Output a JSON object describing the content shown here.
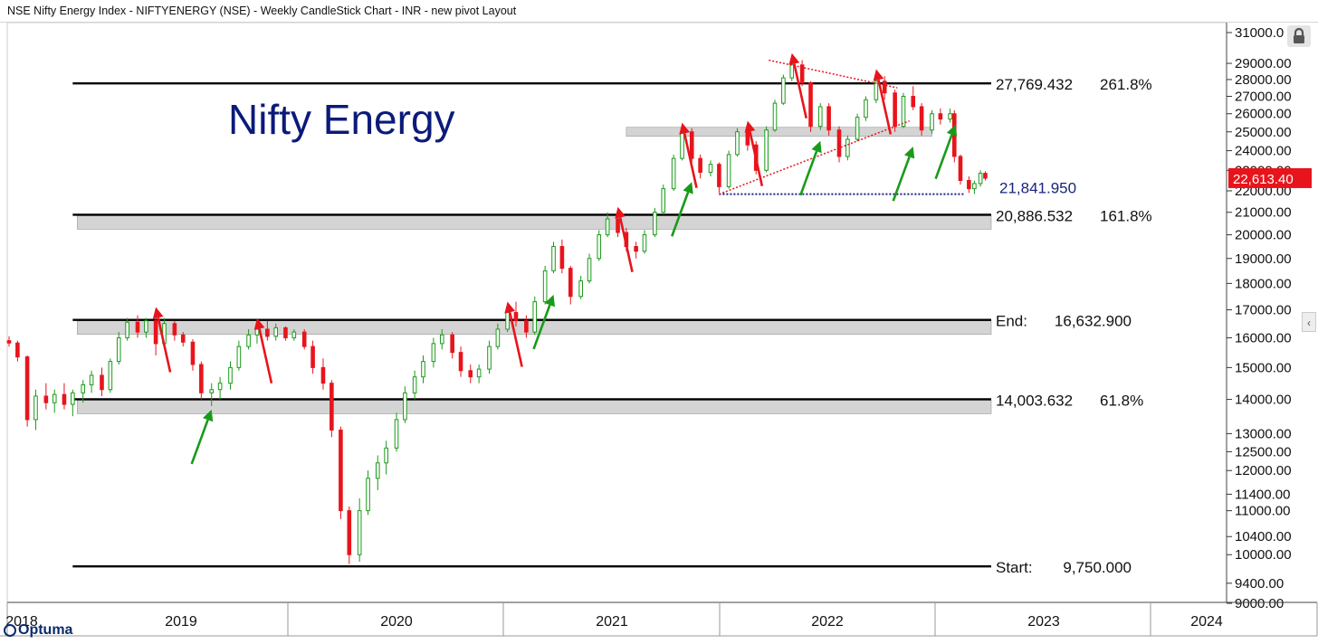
{
  "header": {
    "title": "NSE Nifty Energy Index - NIFTYENERGY (NSE) - Weekly CandleStick Chart - INR - new pivot Layout"
  },
  "brand": {
    "name": "Optuma"
  },
  "icons": {
    "lock": "lock-icon",
    "collapse": "chevron-left-icon"
  },
  "colors": {
    "up": "#1a9a1a",
    "down": "#e8141c",
    "level": "#000000",
    "band": "#d4d4d4",
    "title": "#0b1a7a",
    "lastprice_bg": "#e8141c",
    "pivot": "#1a237e"
  },
  "chart_data": {
    "type": "candlestick",
    "title": "Nifty Energy",
    "xlabel": "",
    "ylabel": "",
    "y_scale": "log",
    "ylim": [
      9000,
      31000
    ],
    "y_ticks": [
      {
        "value": 31000,
        "label": "31000.0"
      },
      {
        "value": 29000,
        "label": "29000.00"
      },
      {
        "value": 28000,
        "label": "28000.00"
      },
      {
        "value": 27000,
        "label": "27000.00"
      },
      {
        "value": 26000,
        "label": "26000.00"
      },
      {
        "value": 25000,
        "label": "25000.00"
      },
      {
        "value": 24000,
        "label": "24000.00"
      },
      {
        "value": 23000,
        "label": "23000.00"
      },
      {
        "value": 22000,
        "label": "22000.00"
      },
      {
        "value": 21000,
        "label": "21000.00"
      },
      {
        "value": 20000,
        "label": "20000.00"
      },
      {
        "value": 19000,
        "label": "19000.00"
      },
      {
        "value": 18000,
        "label": "18000.00"
      },
      {
        "value": 17000,
        "label": "17000.00"
      },
      {
        "value": 16000,
        "label": "16000.00"
      },
      {
        "value": 15000,
        "label": "15000.00"
      },
      {
        "value": 14000,
        "label": "14000.00"
      },
      {
        "value": 13000,
        "label": "13000.00"
      },
      {
        "value": 12500,
        "label": "12500.00"
      },
      {
        "value": 12000,
        "label": "12000.00"
      },
      {
        "value": 11400,
        "label": "11400.00"
      },
      {
        "value": 11000,
        "label": "11000.00"
      },
      {
        "value": 10400,
        "label": "10400.00"
      },
      {
        "value": 10000,
        "label": "10000.00"
      },
      {
        "value": 9400,
        "label": "9400.00"
      },
      {
        "value": 9000,
        "label": "9000.00"
      }
    ],
    "x_axis": {
      "domain": [
        "2018-09-01",
        "2024-02-15"
      ],
      "labels": [
        {
          "date": "2018-07-01",
          "label": "2018"
        },
        {
          "date": "2019-07-01",
          "label": "2019"
        },
        {
          "date": "2020-07-01",
          "label": "2020"
        },
        {
          "date": "2021-07-01",
          "label": "2021"
        },
        {
          "date": "2022-07-01",
          "label": "2022"
        },
        {
          "date": "2023-07-01",
          "label": "2023"
        },
        {
          "date": "2024-02-01",
          "label": "2024"
        }
      ]
    },
    "levels": [
      {
        "value": 27769.432,
        "label": "27,769.432",
        "pct": "261.8%",
        "band": false,
        "x_start": "2018-12-15"
      },
      {
        "value": 20886.532,
        "label": "20,886.532",
        "pct": "161.8%",
        "band": true,
        "x_start": "2018-12-15"
      },
      {
        "value": 16632.9,
        "label": "End:",
        "value_label": "16,632.900",
        "pct": "",
        "band": true,
        "x_start": "2018-12-15"
      },
      {
        "value": 14003.632,
        "label": "14,003.632",
        "pct": "61.8%",
        "band": true,
        "x_start": "2018-12-15"
      },
      {
        "value": 9750.0,
        "label": "Start:",
        "value_label": "9,750.000",
        "pct": "",
        "band": false,
        "x_start": "2018-12-15"
      }
    ],
    "resistance_band": {
      "value": 25000,
      "start": "2021-06-15",
      "end": "2022-11-01"
    },
    "pivot_line": {
      "value": 21841.95,
      "label": "21,841.950",
      "start": "2021-11-15",
      "end": "2022-12-25"
    },
    "triangle_lines": [
      {
        "from": {
          "date": "2021-11-15",
          "y": 21841.95
        },
        "to": {
          "date": "2022-09-25",
          "y": 25600
        }
      },
      {
        "from": {
          "date": "2022-02-05",
          "y": 29200
        },
        "to": {
          "date": "2022-09-05",
          "y": 27500
        }
      }
    ],
    "last_price": {
      "value": 22613.4,
      "label": "22,613.40"
    },
    "candles": [
      {
        "d": "2018-09-01",
        "o": 15900,
        "h": 16050,
        "l": 15700,
        "c": 15820
      },
      {
        "d": "2018-09-15",
        "o": 15820,
        "h": 15900,
        "l": 15200,
        "c": 15350
      },
      {
        "d": "2018-10-01",
        "o": 15350,
        "h": 15400,
        "l": 13200,
        "c": 13400
      },
      {
        "d": "2018-10-15",
        "o": 13400,
        "h": 14300,
        "l": 13100,
        "c": 14100
      },
      {
        "d": "2018-11-01",
        "o": 14100,
        "h": 14500,
        "l": 13700,
        "c": 13900
      },
      {
        "d": "2018-11-15",
        "o": 13900,
        "h": 14300,
        "l": 13600,
        "c": 14150
      },
      {
        "d": "2018-12-01",
        "o": 14150,
        "h": 14500,
        "l": 13700,
        "c": 13850
      },
      {
        "d": "2018-12-15",
        "o": 13850,
        "h": 14300,
        "l": 13500,
        "c": 14200
      },
      {
        "d": "2019-01-01",
        "o": 14200,
        "h": 14600,
        "l": 13900,
        "c": 14450
      },
      {
        "d": "2019-01-15",
        "o": 14450,
        "h": 14900,
        "l": 14200,
        "c": 14750
      },
      {
        "d": "2019-02-01",
        "o": 14750,
        "h": 15000,
        "l": 14100,
        "c": 14300
      },
      {
        "d": "2019-02-15",
        "o": 14300,
        "h": 15300,
        "l": 14200,
        "c": 15200
      },
      {
        "d": "2019-03-01",
        "o": 15200,
        "h": 16200,
        "l": 15100,
        "c": 16000
      },
      {
        "d": "2019-03-15",
        "o": 16000,
        "h": 16700,
        "l": 15900,
        "c": 16550
      },
      {
        "d": "2019-04-01",
        "o": 16550,
        "h": 16800,
        "l": 16000,
        "c": 16200
      },
      {
        "d": "2019-04-15",
        "o": 16200,
        "h": 16700,
        "l": 16000,
        "c": 16600
      },
      {
        "d": "2019-05-01",
        "o": 16600,
        "h": 16900,
        "l": 15400,
        "c": 15800
      },
      {
        "d": "2019-05-15",
        "o": 15800,
        "h": 16700,
        "l": 15700,
        "c": 16500
      },
      {
        "d": "2019-06-01",
        "o": 16500,
        "h": 16600,
        "l": 15900,
        "c": 16100
      },
      {
        "d": "2019-06-15",
        "o": 16100,
        "h": 16200,
        "l": 15700,
        "c": 15850
      },
      {
        "d": "2019-07-01",
        "o": 15850,
        "h": 15950,
        "l": 14900,
        "c": 15100
      },
      {
        "d": "2019-07-15",
        "o": 15100,
        "h": 15200,
        "l": 14000,
        "c": 14200
      },
      {
        "d": "2019-08-01",
        "o": 14200,
        "h": 14500,
        "l": 13800,
        "c": 14300
      },
      {
        "d": "2019-08-15",
        "o": 14300,
        "h": 14700,
        "l": 14000,
        "c": 14500
      },
      {
        "d": "2019-09-01",
        "o": 14500,
        "h": 15200,
        "l": 14300,
        "c": 15000
      },
      {
        "d": "2019-09-15",
        "o": 15000,
        "h": 15900,
        "l": 14900,
        "c": 15700
      },
      {
        "d": "2019-10-01",
        "o": 15700,
        "h": 16300,
        "l": 15600,
        "c": 16100
      },
      {
        "d": "2019-10-15",
        "o": 16100,
        "h": 16500,
        "l": 15800,
        "c": 16300
      },
      {
        "d": "2019-11-01",
        "o": 16300,
        "h": 16600,
        "l": 15900,
        "c": 16050
      },
      {
        "d": "2019-11-15",
        "o": 16050,
        "h": 16500,
        "l": 15900,
        "c": 16350
      },
      {
        "d": "2019-12-01",
        "o": 16350,
        "h": 16400,
        "l": 15900,
        "c": 16000
      },
      {
        "d": "2019-12-15",
        "o": 16000,
        "h": 16300,
        "l": 15900,
        "c": 16200
      },
      {
        "d": "2020-01-01",
        "o": 16200,
        "h": 16300,
        "l": 15600,
        "c": 15700
      },
      {
        "d": "2020-01-15",
        "o": 15700,
        "h": 15900,
        "l": 14800,
        "c": 15000
      },
      {
        "d": "2020-02-01",
        "o": 15000,
        "h": 15300,
        "l": 14300,
        "c": 14500
      },
      {
        "d": "2020-02-15",
        "o": 14500,
        "h": 14600,
        "l": 12900,
        "c": 13100
      },
      {
        "d": "2020-03-01",
        "o": 13100,
        "h": 13200,
        "l": 10800,
        "c": 11000
      },
      {
        "d": "2020-03-15",
        "o": 11000,
        "h": 11100,
        "l": 9800,
        "c": 10000
      },
      {
        "d": "2020-04-01",
        "o": 10000,
        "h": 11300,
        "l": 9850,
        "c": 11000
      },
      {
        "d": "2020-04-15",
        "o": 11000,
        "h": 12000,
        "l": 10900,
        "c": 11800
      },
      {
        "d": "2020-05-01",
        "o": 11800,
        "h": 12400,
        "l": 11500,
        "c": 12200
      },
      {
        "d": "2020-05-15",
        "o": 12200,
        "h": 12800,
        "l": 11900,
        "c": 12600
      },
      {
        "d": "2020-06-01",
        "o": 12600,
        "h": 13600,
        "l": 12500,
        "c": 13400
      },
      {
        "d": "2020-06-15",
        "o": 13400,
        "h": 14400,
        "l": 13300,
        "c": 14200
      },
      {
        "d": "2020-07-01",
        "o": 14200,
        "h": 14900,
        "l": 14000,
        "c": 14700
      },
      {
        "d": "2020-07-15",
        "o": 14700,
        "h": 15400,
        "l": 14500,
        "c": 15200
      },
      {
        "d": "2020-08-01",
        "o": 15200,
        "h": 16000,
        "l": 15000,
        "c": 15800
      },
      {
        "d": "2020-08-15",
        "o": 15800,
        "h": 16300,
        "l": 15600,
        "c": 16100
      },
      {
        "d": "2020-09-01",
        "o": 16100,
        "h": 16200,
        "l": 15300,
        "c": 15500
      },
      {
        "d": "2020-09-15",
        "o": 15500,
        "h": 15700,
        "l": 14700,
        "c": 14900
      },
      {
        "d": "2020-10-01",
        "o": 14900,
        "h": 15100,
        "l": 14500,
        "c": 14700
      },
      {
        "d": "2020-10-15",
        "o": 14700,
        "h": 15100,
        "l": 14500,
        "c": 14950
      },
      {
        "d": "2020-11-01",
        "o": 14950,
        "h": 15900,
        "l": 14800,
        "c": 15700
      },
      {
        "d": "2020-11-15",
        "o": 15700,
        "h": 16500,
        "l": 15600,
        "c": 16300
      },
      {
        "d": "2020-12-01",
        "o": 16300,
        "h": 17100,
        "l": 16200,
        "c": 16900
      },
      {
        "d": "2020-12-15",
        "o": 16900,
        "h": 17300,
        "l": 16400,
        "c": 16600
      },
      {
        "d": "2021-01-01",
        "o": 16600,
        "h": 16800,
        "l": 16000,
        "c": 16200
      },
      {
        "d": "2021-01-15",
        "o": 16200,
        "h": 17500,
        "l": 16100,
        "c": 17300
      },
      {
        "d": "2021-02-01",
        "o": 17300,
        "h": 18700,
        "l": 17200,
        "c": 18500
      },
      {
        "d": "2021-02-15",
        "o": 18500,
        "h": 19700,
        "l": 18400,
        "c": 19500
      },
      {
        "d": "2021-03-01",
        "o": 19500,
        "h": 19800,
        "l": 18400,
        "c": 18600
      },
      {
        "d": "2021-03-15",
        "o": 18600,
        "h": 18700,
        "l": 17200,
        "c": 17500
      },
      {
        "d": "2021-04-01",
        "o": 17500,
        "h": 18300,
        "l": 17400,
        "c": 18100
      },
      {
        "d": "2021-04-15",
        "o": 18100,
        "h": 19200,
        "l": 18000,
        "c": 19000
      },
      {
        "d": "2021-05-01",
        "o": 19000,
        "h": 20200,
        "l": 18900,
        "c": 20000
      },
      {
        "d": "2021-05-15",
        "o": 20000,
        "h": 21000,
        "l": 19900,
        "c": 20700
      },
      {
        "d": "2021-06-01",
        "o": 20700,
        "h": 20900,
        "l": 19900,
        "c": 20100
      },
      {
        "d": "2021-06-15",
        "o": 20100,
        "h": 20300,
        "l": 19300,
        "c": 19500
      },
      {
        "d": "2021-07-01",
        "o": 19500,
        "h": 19700,
        "l": 19000,
        "c": 19300
      },
      {
        "d": "2021-07-15",
        "o": 19300,
        "h": 20200,
        "l": 19200,
        "c": 20000
      },
      {
        "d": "2021-08-01",
        "o": 20000,
        "h": 21200,
        "l": 19900,
        "c": 21000
      },
      {
        "d": "2021-08-15",
        "o": 21000,
        "h": 22300,
        "l": 20900,
        "c": 22100
      },
      {
        "d": "2021-09-01",
        "o": 22100,
        "h": 23800,
        "l": 22000,
        "c": 23600
      },
      {
        "d": "2021-09-15",
        "o": 23600,
        "h": 25200,
        "l": 23500,
        "c": 25000
      },
      {
        "d": "2021-10-01",
        "o": 25000,
        "h": 25200,
        "l": 23400,
        "c": 23600
      },
      {
        "d": "2021-10-15",
        "o": 23600,
        "h": 23800,
        "l": 22600,
        "c": 22900
      },
      {
        "d": "2021-11-01",
        "o": 22900,
        "h": 23500,
        "l": 22700,
        "c": 23300
      },
      {
        "d": "2021-11-15",
        "o": 23300,
        "h": 23400,
        "l": 21900,
        "c": 22200
      },
      {
        "d": "2021-12-01",
        "o": 22200,
        "h": 24000,
        "l": 22100,
        "c": 23800
      },
      {
        "d": "2021-12-15",
        "o": 23800,
        "h": 25200,
        "l": 23700,
        "c": 25000
      },
      {
        "d": "2022-01-01",
        "o": 25000,
        "h": 25300,
        "l": 24000,
        "c": 24300
      },
      {
        "d": "2022-01-15",
        "o": 24300,
        "h": 24500,
        "l": 22800,
        "c": 23000
      },
      {
        "d": "2022-02-01",
        "o": 23000,
        "h": 25300,
        "l": 22900,
        "c": 25100
      },
      {
        "d": "2022-02-15",
        "o": 25100,
        "h": 26800,
        "l": 25000,
        "c": 26600
      },
      {
        "d": "2022-03-01",
        "o": 26600,
        "h": 28300,
        "l": 26500,
        "c": 28100
      },
      {
        "d": "2022-03-15",
        "o": 28100,
        "h": 29300,
        "l": 27900,
        "c": 28900
      },
      {
        "d": "2022-04-01",
        "o": 28900,
        "h": 29200,
        "l": 27600,
        "c": 27800
      },
      {
        "d": "2022-04-15",
        "o": 27800,
        "h": 27900,
        "l": 25000,
        "c": 25300
      },
      {
        "d": "2022-05-01",
        "o": 25300,
        "h": 26600,
        "l": 25100,
        "c": 26400
      },
      {
        "d": "2022-05-15",
        "o": 26400,
        "h": 26600,
        "l": 24800,
        "c": 25100
      },
      {
        "d": "2022-06-01",
        "o": 25100,
        "h": 25300,
        "l": 23400,
        "c": 23700
      },
      {
        "d": "2022-06-15",
        "o": 23700,
        "h": 24800,
        "l": 23500,
        "c": 24600
      },
      {
        "d": "2022-07-01",
        "o": 24600,
        "h": 26000,
        "l": 24500,
        "c": 25800
      },
      {
        "d": "2022-07-15",
        "o": 25800,
        "h": 27000,
        "l": 25600,
        "c": 26800
      },
      {
        "d": "2022-08-01",
        "o": 26800,
        "h": 28200,
        "l": 26600,
        "c": 27900
      },
      {
        "d": "2022-08-15",
        "o": 27900,
        "h": 28200,
        "l": 26800,
        "c": 27200
      },
      {
        "d": "2022-09-01",
        "o": 27200,
        "h": 27400,
        "l": 25000,
        "c": 25300
      },
      {
        "d": "2022-09-15",
        "o": 25300,
        "h": 27200,
        "l": 25200,
        "c": 27000
      },
      {
        "d": "2022-10-01",
        "o": 27000,
        "h": 27600,
        "l": 26200,
        "c": 26400
      },
      {
        "d": "2022-10-15",
        "o": 26400,
        "h": 26600,
        "l": 24800,
        "c": 25100
      },
      {
        "d": "2022-11-01",
        "o": 25100,
        "h": 26200,
        "l": 24900,
        "c": 26000
      },
      {
        "d": "2022-11-15",
        "o": 26000,
        "h": 26300,
        "l": 25400,
        "c": 25700
      },
      {
        "d": "2022-12-01",
        "o": 25700,
        "h": 26300,
        "l": 25500,
        "c": 26000
      },
      {
        "d": "2022-12-08",
        "o": 26000,
        "h": 26200,
        "l": 23400,
        "c": 23700
      },
      {
        "d": "2022-12-18",
        "o": 23700,
        "h": 23800,
        "l": 22300,
        "c": 22500
      },
      {
        "d": "2023-01-01",
        "o": 22500,
        "h": 22700,
        "l": 21900,
        "c": 22100
      },
      {
        "d": "2023-01-10",
        "o": 22100,
        "h": 22500,
        "l": 21850,
        "c": 22350
      },
      {
        "d": "2023-01-20",
        "o": 22350,
        "h": 23000,
        "l": 22200,
        "c": 22850
      },
      {
        "d": "2023-01-28",
        "o": 22850,
        "h": 22950,
        "l": 22500,
        "c": 22613
      }
    ],
    "annotations": {
      "red_arrows": [
        {
          "date": "2019-05-01",
          "y": 16900
        },
        {
          "date": "2019-10-15",
          "y": 16500
        },
        {
          "date": "2020-12-01",
          "y": 17100
        },
        {
          "date": "2021-06-01",
          "y": 21000
        },
        {
          "date": "2021-09-15",
          "y": 25200
        },
        {
          "date": "2022-01-01",
          "y": 25300
        },
        {
          "date": "2022-03-15",
          "y": 29300
        },
        {
          "date": "2022-08-01",
          "y": 28300
        }
      ],
      "green_arrows": [
        {
          "date": "2019-08-01",
          "y": 13800
        },
        {
          "date": "2021-02-15",
          "y": 17700
        },
        {
          "date": "2021-10-01",
          "y": 22600
        },
        {
          "date": "2022-05-01",
          "y": 24700
        },
        {
          "date": "2022-10-01",
          "y": 24400
        },
        {
          "date": "2022-12-10",
          "y": 25600
        }
      ]
    }
  }
}
